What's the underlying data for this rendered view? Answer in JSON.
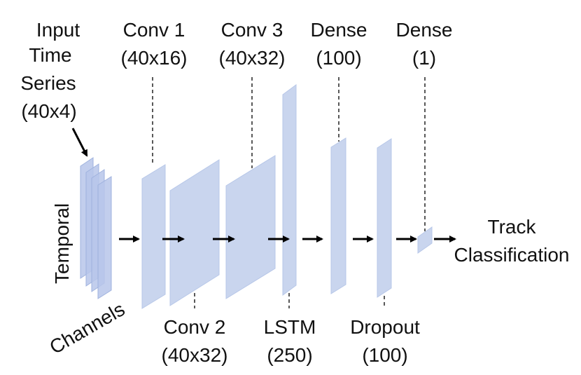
{
  "input": {
    "line1": "Input",
    "line2": "Time",
    "line3": "Series",
    "line4": "(40x4)"
  },
  "axes": {
    "temporal": "Temporal",
    "channels": "Channels"
  },
  "layers": {
    "conv1": {
      "name": "Conv 1",
      "shape": "(40x16)"
    },
    "conv2": {
      "name": "Conv 2",
      "shape": "(40x32)"
    },
    "conv3": {
      "name": "Conv 3",
      "shape": "(40x32)"
    },
    "lstm": {
      "name": "LSTM",
      "shape": "(250)"
    },
    "dense1": {
      "name": "Dense",
      "shape": "(100)"
    },
    "dropout": {
      "name": "Dropout",
      "shape": "(100)"
    },
    "dense2": {
      "name": "Dense",
      "shape": "(1)"
    }
  },
  "output": {
    "line1": "Track",
    "line2": "Classification"
  },
  "colors": {
    "layer_fill": "#c9d5ee",
    "input_fill": "#b7c6ea",
    "text": "#111111"
  }
}
